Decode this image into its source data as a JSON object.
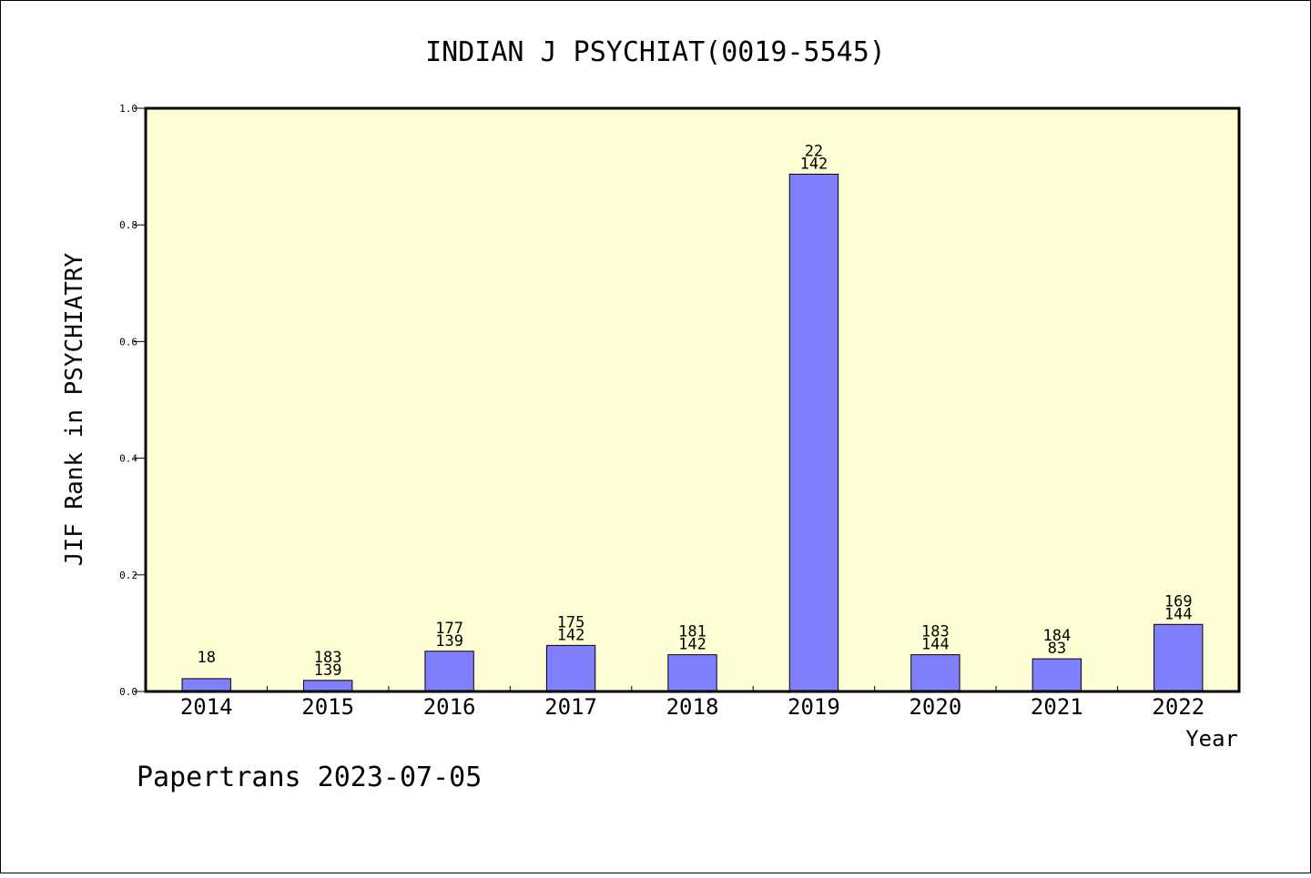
{
  "chart_data": {
    "type": "bar",
    "title": "INDIAN J PSYCHIAT(0019-5545)",
    "xlabel": "Year",
    "ylabel": "JIF Rank in PSYCHIATRY",
    "categories": [
      "2014",
      "2015",
      "2016",
      "2017",
      "2018",
      "2019",
      "2020",
      "2021",
      "2022"
    ],
    "values": [
      0.022,
      0.019,
      0.069,
      0.079,
      0.063,
      0.887,
      0.063,
      0.056,
      0.115
    ],
    "bar_labels": [
      [
        "18"
      ],
      [
        "183",
        "139"
      ],
      [
        "177",
        "139"
      ],
      [
        "175",
        "142"
      ],
      [
        "181",
        "142"
      ],
      [
        "22",
        "142"
      ],
      [
        "183",
        "144"
      ],
      [
        "184",
        "83"
      ],
      [
        "169",
        "144"
      ]
    ],
    "ylim": [
      0,
      1.0
    ],
    "yticks": [
      "0.0",
      "0.2",
      "0.4",
      "0.6",
      "0.8",
      "1.0"
    ],
    "grid": false,
    "colors": {
      "plot_background": "#ffffd5",
      "bar_fill": "#8080ff",
      "bar_stroke": "#000000"
    }
  },
  "footer": {
    "credit": "Papertrans 2023-07-05"
  }
}
